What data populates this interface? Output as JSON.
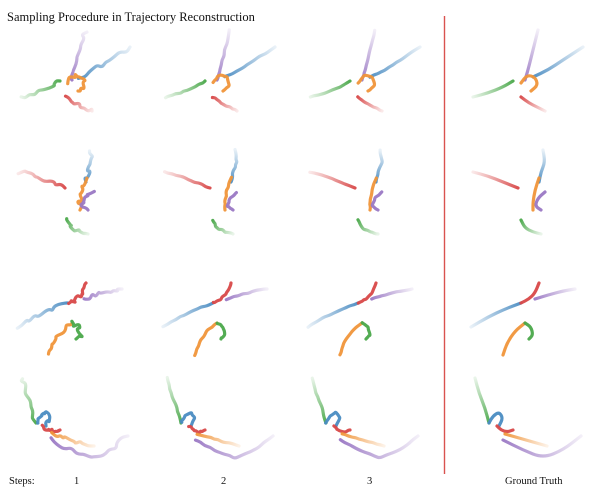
{
  "title": "Sampling Procedure in Trajectory Reconstruction",
  "steps_label": "Steps:",
  "columns": [
    "1",
    "2",
    "3",
    "Ground Truth"
  ],
  "colors": {
    "blue": "#4a8cc2",
    "orange": "#f0953a",
    "green": "#4aa84a",
    "red": "#d84848",
    "purple": "#9a78c4",
    "divider": "#d9534f"
  },
  "rows": 4
}
